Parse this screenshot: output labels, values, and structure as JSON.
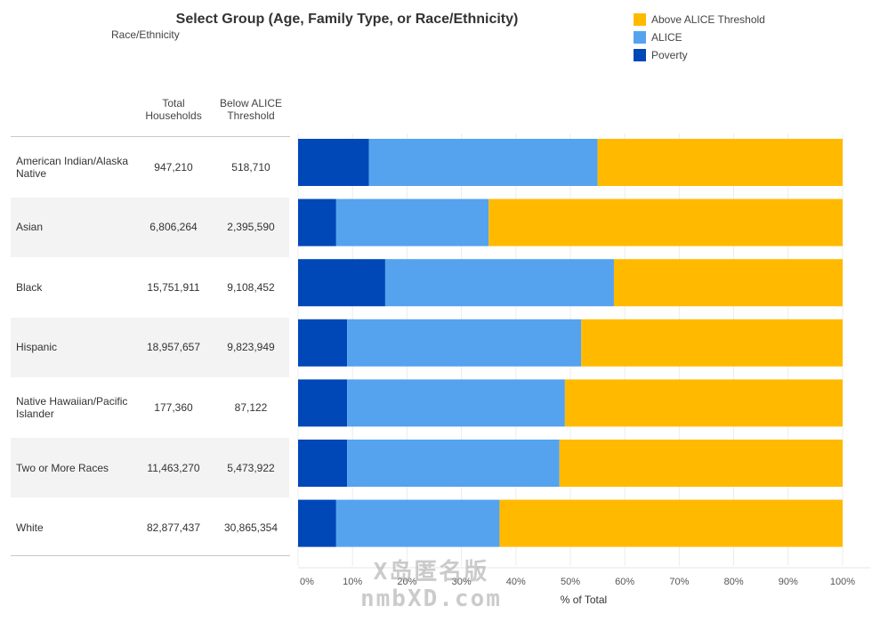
{
  "header": {
    "title": "Select Group (Age, Family Type, or Race/Ethnicity)",
    "selected_group": "Race/Ethnicity"
  },
  "table": {
    "col_total": "Total Households",
    "col_below": "Below ALICE Threshold"
  },
  "chart_data": {
    "type": "bar",
    "orientation": "horizontal",
    "stacked": true,
    "categories": [
      "American Indian/Alaska Native",
      "Asian",
      "Black",
      "Hispanic",
      "Native Hawaiian/Pacific Islander",
      "Two or More Races",
      "White"
    ],
    "total_households": [
      "947,210",
      "6,806,264",
      "15,751,911",
      "18,957,657",
      "177,360",
      "11,463,270",
      "82,877,437"
    ],
    "below_alice": [
      "518,710",
      "2,395,590",
      "9,108,452",
      "9,823,949",
      "87,122",
      "5,473,922",
      "30,865,354"
    ],
    "series": [
      {
        "name": "Poverty",
        "color": "#0047b8",
        "values": [
          13,
          7,
          16,
          9,
          9,
          9,
          7
        ]
      },
      {
        "name": "ALICE",
        "color": "#55a2ef",
        "values": [
          42,
          28,
          42,
          43,
          40,
          39,
          30
        ]
      },
      {
        "name": "Above ALICE Threshold",
        "color": "#ffba00",
        "values": [
          45,
          65,
          42,
          48,
          51,
          52,
          63
        ]
      }
    ],
    "legend": [
      "Above ALICE Threshold",
      "ALICE",
      "Poverty"
    ],
    "legend_colors": [
      "#ffba00",
      "#55a2ef",
      "#0047b8"
    ],
    "x_ticks": [
      "0%",
      "10%",
      "20%",
      "30%",
      "40%",
      "50%",
      "60%",
      "70%",
      "80%",
      "90%",
      "100%"
    ],
    "xlabel": "% of Total",
    "xlim": [
      0,
      100
    ],
    "legend_position": "top-right"
  },
  "watermark": {
    "line1": "X岛匿名版",
    "line2": "nmbXD.com"
  }
}
